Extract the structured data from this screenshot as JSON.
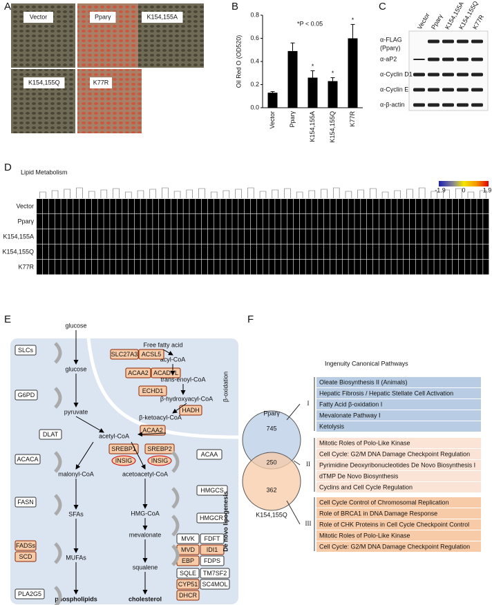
{
  "panel_letters": [
    "A",
    "B",
    "C",
    "D",
    "E",
    "F"
  ],
  "panel_a": {
    "images": [
      "Vector",
      "Pparγ",
      "K154,155A",
      "K154,155Q",
      "K77R"
    ]
  },
  "chart_data": {
    "type": "bar",
    "ylabel": "Oil Red O (OD520)",
    "annotation": "*P < 0.05",
    "categories": [
      "Vector",
      "Pparγ",
      "K154,155A",
      "K154,155Q",
      "K77R"
    ],
    "values": [
      0.13,
      0.49,
      0.26,
      0.23,
      0.6
    ],
    "errors": [
      0.01,
      0.07,
      0.06,
      0.03,
      0.12
    ],
    "significance": [
      null,
      null,
      "*",
      "*",
      "*"
    ],
    "color": "#000000",
    "ylim": [
      0,
      0.8
    ],
    "yticks": [
      {
        "value": 0,
        "label": "0.0"
      },
      0.2,
      0.4,
      0.6,
      0.8
    ]
  },
  "panel_c": {
    "lanes": [
      "Vector",
      "Pparγ",
      "K154,155A",
      "K154,155Q",
      "K77R"
    ],
    "rows": [
      "α-FLAG",
      "α-aP2",
      "α-Cyclin D1",
      "α-Cyclin E",
      "α-β-actin"
    ],
    "flag_sublabel": "(Pparγ)"
  },
  "panel_d": {
    "title": "Lipid Metabolism",
    "rows": [
      "Vector",
      "Pparγ",
      "K154,155A",
      "K154,155Q",
      "K77R"
    ],
    "scale_ticks": [
      -1.9,
      0,
      1.9
    ]
  },
  "panel_e": {
    "metabolites": [
      "glucose",
      "glucose",
      "pyruvate",
      "acetyl-CoA",
      "malonyl-CoA",
      "acetoacetyl-CoA",
      "SFAs",
      "HMG-CoA",
      "mevalonate",
      "MUFAs",
      "squalene",
      "phospholipids",
      "cholesterol",
      "Free fatty acid",
      "acyl-CoA",
      "trans-enoyl-CoA",
      "β-hydroxyacyl-CoA",
      "β-ketoacyl-CoA"
    ],
    "enzymes": [
      "SLCs",
      "G6PD",
      "DLAT",
      "ACACA",
      "SREBP1",
      "INSIG",
      "SREBP2",
      "INSIG",
      "ACAA",
      "FASN",
      "HMGCS",
      "HMGCR",
      "FADSs",
      "SCD",
      "MVK",
      "FDFT",
      "MVD",
      "IDI1",
      "EBP",
      "FDPS",
      "PLA2G5",
      "SQLE",
      "TM7SF2",
      "CYP51",
      "SC4MOL",
      "DHCR",
      "SLC27A3",
      "ACSL5",
      "ACAA2",
      "ACADVL",
      "ECHD1",
      "HADH",
      "ACAA2"
    ],
    "section_labels": [
      "β-oxidation",
      "De novo lipogenesis"
    ]
  },
  "panel_f": {
    "title": "Ingenuity Canonical Pathways",
    "venn": {
      "top_label": "Pparγ",
      "bottom_label": "K154,155Q",
      "counts": [
        "745",
        "250",
        "362"
      ]
    },
    "groups": [
      {
        "numeral": "I",
        "pathways": [
          "Oleate Biosynthesis II (Animals)",
          "Hepatic Fibrosis / Hepatic Stellate Cell Activation",
          "Fatty Acid β-oxidation I",
          "Mevalonate Pathway I",
          "Ketolysis"
        ]
      },
      {
        "numeral": "II",
        "pathways": [
          "Mitotic Roles of Polo-Like Kinase",
          "Cell Cycle: G2/M DNA Damage Checkpoint Regulation",
          "Pyrimidine Deoxyribonucleotides De Novo Biosynthesis I",
          "dTMP De Novo Biosynthesis",
          "Cyclins and Cell Cycle Regulation"
        ]
      },
      {
        "numeral": "III",
        "pathways": [
          "Cell Cycle Control of Chromosomal Replication",
          "Role of BRCA1 in DNA Damage Response",
          "Role of CHK Proteins in Cell Cycle Checkpoint Control",
          "Mitotic Roles of Polo-Like Kinase",
          "Cell Cycle: G2/M DNA Damage Checkpoint Regulation"
        ]
      }
    ]
  }
}
